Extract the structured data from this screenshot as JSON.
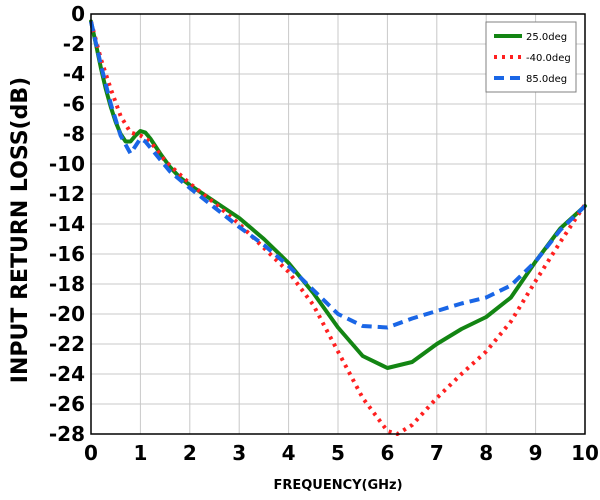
{
  "chart_data": {
    "type": "line",
    "xlabel": "FREQUENCY(GHz)",
    "ylabel": "INPUT RETURN LOSS(dB)",
    "xlim": [
      0,
      10
    ],
    "ylim": [
      -28,
      0
    ],
    "xticks": [
      "0",
      "1",
      "2",
      "3",
      "4",
      "5",
      "6",
      "7",
      "8",
      "9",
      "10"
    ],
    "yticks": [
      "0",
      "-2",
      "-4",
      "-6",
      "-8",
      "-10",
      "-12",
      "-14",
      "-16",
      "-18",
      "-20",
      "-22",
      "-24",
      "-26",
      "-28"
    ],
    "grid": true,
    "legend_position": "top-right",
    "series": [
      {
        "name": "25.0deg",
        "color": "#138513",
        "style": "solid",
        "x": [
          0,
          0.1,
          0.2,
          0.3,
          0.4,
          0.5,
          0.6,
          0.7,
          0.8,
          0.9,
          1.0,
          1.1,
          1.2,
          1.4,
          1.6,
          1.8,
          2.0,
          2.5,
          3.0,
          3.5,
          4.0,
          4.5,
          5.0,
          5.5,
          6.0,
          6.5,
          7.0,
          7.5,
          8.0,
          8.5,
          9.0,
          9.5,
          10.0
        ],
        "y": [
          -0.5,
          -2.0,
          -3.6,
          -5.0,
          -6.2,
          -7.2,
          -8.0,
          -8.5,
          -8.5,
          -8.1,
          -7.8,
          -7.9,
          -8.3,
          -9.3,
          -10.2,
          -10.9,
          -11.4,
          -12.5,
          -13.6,
          -15.0,
          -16.6,
          -18.6,
          -20.9,
          -22.8,
          -23.6,
          -23.2,
          -22.0,
          -21.0,
          -20.2,
          -18.9,
          -16.5,
          -14.3,
          -12.8
        ]
      },
      {
        "name": "-40.0deg",
        "color": "#ff2020",
        "style": "dotted",
        "x": [
          0,
          0.2,
          0.4,
          0.6,
          0.8,
          1.0,
          1.2,
          1.5,
          2.0,
          2.5,
          3.0,
          3.5,
          4.0,
          4.5,
          5.0,
          5.5,
          6.0,
          6.2,
          6.5,
          7.0,
          7.5,
          8.0,
          8.5,
          9.0,
          9.5,
          10.0
        ],
        "y": [
          -0.5,
          -3.0,
          -5.0,
          -6.8,
          -7.9,
          -8.1,
          -8.5,
          -9.8,
          -11.3,
          -12.6,
          -14.0,
          -15.6,
          -17.2,
          -19.4,
          -22.5,
          -25.6,
          -27.8,
          -28.0,
          -27.4,
          -25.6,
          -24.0,
          -22.5,
          -20.5,
          -17.8,
          -15.2,
          -12.7
        ]
      },
      {
        "name": "85.0deg",
        "color": "#1a66e6",
        "style": "dashed",
        "x": [
          0,
          0.2,
          0.4,
          0.6,
          0.8,
          0.9,
          1.0,
          1.1,
          1.3,
          1.6,
          2.0,
          2.5,
          3.0,
          3.5,
          4.0,
          4.5,
          5.0,
          5.5,
          6.0,
          6.5,
          7.0,
          7.5,
          8.0,
          8.5,
          9.0,
          9.5,
          10.0
        ],
        "y": [
          -0.5,
          -3.4,
          -6.0,
          -8.1,
          -9.3,
          -8.8,
          -8.3,
          -8.5,
          -9.3,
          -10.5,
          -11.6,
          -12.9,
          -14.2,
          -15.4,
          -16.8,
          -18.4,
          -20.0,
          -20.8,
          -20.9,
          -20.3,
          -19.8,
          -19.3,
          -18.9,
          -18.1,
          -16.5,
          -14.4,
          -12.8
        ]
      }
    ]
  }
}
